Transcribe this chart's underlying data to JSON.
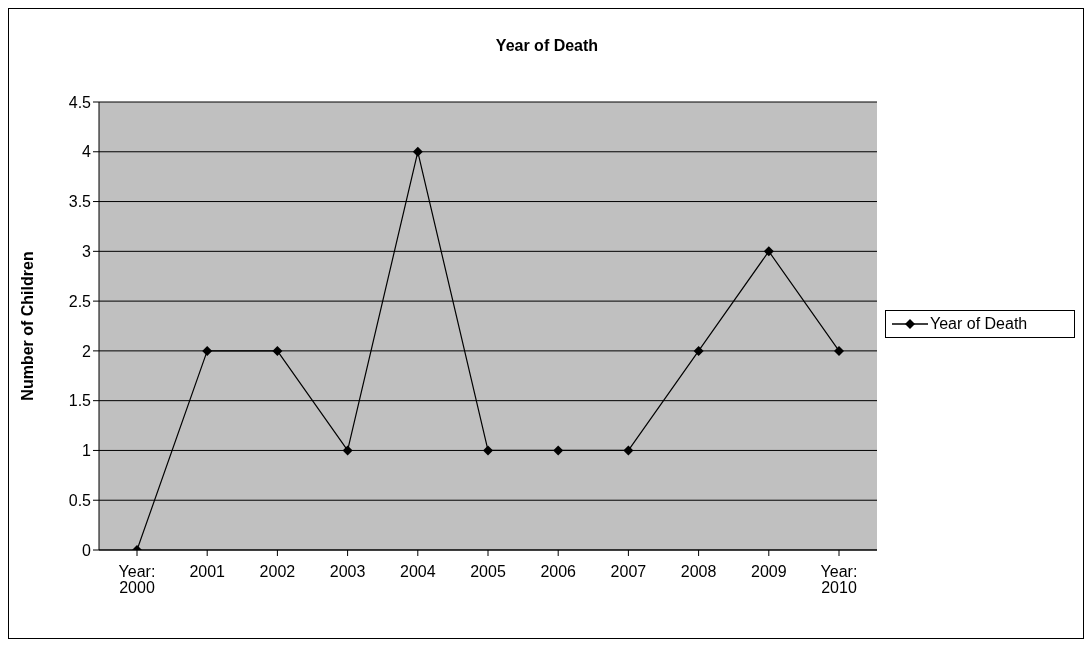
{
  "chart_data": {
    "type": "line",
    "title": "Year of Death",
    "ylabel": "Number of Children",
    "categories": [
      "Year: 2000",
      "2001",
      "2002",
      "2003",
      "2004",
      "2005",
      "2006",
      "2007",
      "2008",
      "2009",
      "Year: 2010"
    ],
    "series": [
      {
        "name": "Year of Death",
        "color": "#000000",
        "values": [
          0,
          2,
          2,
          1,
          4,
          1,
          1,
          1,
          2,
          3,
          2
        ]
      }
    ],
    "ylim": [
      0,
      4.5
    ],
    "yticks": [
      0,
      0.5,
      1,
      1.5,
      2,
      2.5,
      3,
      3.5,
      4,
      4.5
    ],
    "grid": "y",
    "legend": "right",
    "marker": "diamond",
    "line_style": "solid"
  }
}
